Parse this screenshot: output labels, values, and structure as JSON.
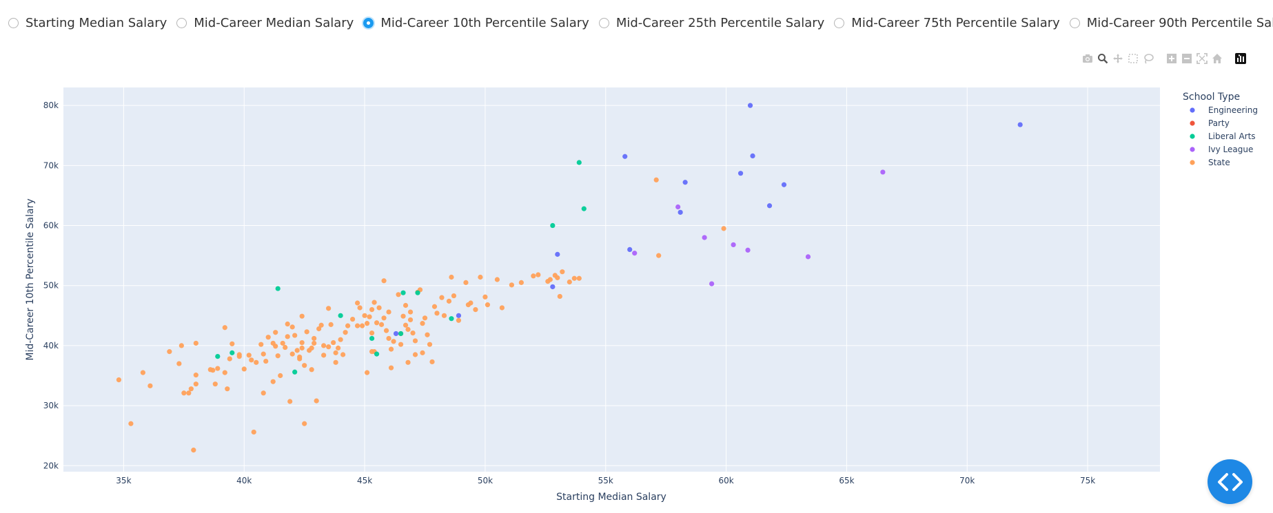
{
  "radio_options": [
    {
      "label": "Starting Median Salary",
      "selected": false
    },
    {
      "label": "Mid-Career Median Salary",
      "selected": false
    },
    {
      "label": "Mid-Career 10th Percentile Salary",
      "selected": true
    },
    {
      "label": "Mid-Career 25th Percentile Salary",
      "selected": false
    },
    {
      "label": "Mid-Career 75th Percentile Salary",
      "selected": false
    },
    {
      "label": "Mid-Career 90th Percentile Salary",
      "selected": false
    }
  ],
  "modebar": {
    "icons": [
      "camera-icon",
      "zoom-icon",
      "pan-icon",
      "box-select-icon",
      "lasso-icon",
      "zoom-in-icon",
      "zoom-out-icon",
      "autoscale-icon",
      "reset-axes-icon",
      "plotly-logo-icon"
    ]
  },
  "chart_data": {
    "type": "scatter",
    "title": "",
    "xlabel": "Starting Median Salary",
    "ylabel": "Mid-Career 10th Percentile Salary",
    "xlim": [
      32500,
      78000
    ],
    "ylim": [
      19000,
      83000
    ],
    "x_ticks": [
      35000,
      40000,
      45000,
      50000,
      55000,
      60000,
      65000,
      70000,
      75000
    ],
    "x_tick_labels": [
      "35k",
      "40k",
      "45k",
      "50k",
      "55k",
      "60k",
      "65k",
      "70k",
      "75k"
    ],
    "y_ticks": [
      20000,
      30000,
      40000,
      50000,
      60000,
      70000,
      80000
    ],
    "y_tick_labels": [
      "20k",
      "30k",
      "40k",
      "50k",
      "60k",
      "70k",
      "80k"
    ],
    "grid": true,
    "legend_title": "School Type",
    "legend_position": "top-right",
    "series": [
      {
        "name": "Engineering",
        "color": "#636efa",
        "points": [
          [
            61000,
            80000
          ],
          [
            72200,
            76800
          ],
          [
            55800,
            71500
          ],
          [
            61100,
            71600
          ],
          [
            60600,
            68700
          ],
          [
            58300,
            67200
          ],
          [
            62400,
            66800
          ],
          [
            61800,
            63300
          ],
          [
            58100,
            62200
          ],
          [
            56000,
            56000
          ],
          [
            53000,
            55200
          ],
          [
            52800,
            49800
          ],
          [
            48900,
            45000
          ],
          [
            46300,
            42000
          ]
        ]
      },
      {
        "name": "Party",
        "color": "#ef553b",
        "points": []
      },
      {
        "name": "Liberal Arts",
        "color": "#00cc96",
        "points": [
          [
            53900,
            70500
          ],
          [
            54100,
            62800
          ],
          [
            52800,
            60000
          ],
          [
            41400,
            49500
          ],
          [
            46600,
            48800
          ],
          [
            47200,
            48800
          ],
          [
            48600,
            44500
          ],
          [
            44000,
            45000
          ],
          [
            45300,
            41200
          ],
          [
            38900,
            38200
          ],
          [
            39500,
            38800
          ],
          [
            45500,
            38600
          ],
          [
            42100,
            35600
          ],
          [
            46500,
            42000
          ]
        ]
      },
      {
        "name": "Ivy League",
        "color": "#ab63fa",
        "points": [
          [
            66500,
            68900
          ],
          [
            58000,
            63100
          ],
          [
            59100,
            58000
          ],
          [
            60300,
            56800
          ],
          [
            56200,
            55400
          ],
          [
            60900,
            55900
          ],
          [
            63400,
            54800
          ],
          [
            59400,
            50300
          ]
        ]
      },
      {
        "name": "State",
        "color": "#ffa15a",
        "points": [
          [
            34800,
            34300
          ],
          [
            35300,
            27000
          ],
          [
            35800,
            35500
          ],
          [
            36100,
            33300
          ],
          [
            36900,
            39000
          ],
          [
            37300,
            37000
          ],
          [
            37400,
            40000
          ],
          [
            37500,
            32100
          ],
          [
            37700,
            32100
          ],
          [
            37800,
            32800
          ],
          [
            37900,
            22600
          ],
          [
            38000,
            35100
          ],
          [
            38000,
            40400
          ],
          [
            38000,
            33600
          ],
          [
            38600,
            36000
          ],
          [
            38700,
            35900
          ],
          [
            38800,
            33600
          ],
          [
            38900,
            36200
          ],
          [
            39200,
            35500
          ],
          [
            39200,
            43000
          ],
          [
            39300,
            32800
          ],
          [
            39400,
            37800
          ],
          [
            39500,
            40300
          ],
          [
            39800,
            38500
          ],
          [
            39800,
            38200
          ],
          [
            40000,
            36100
          ],
          [
            40200,
            38400
          ],
          [
            40300,
            37600
          ],
          [
            40500,
            37200
          ],
          [
            40400,
            25600
          ],
          [
            40700,
            40200
          ],
          [
            40800,
            38600
          ],
          [
            40900,
            37400
          ],
          [
            40800,
            32100
          ],
          [
            41000,
            41400
          ],
          [
            41200,
            34000
          ],
          [
            41200,
            40400
          ],
          [
            41300,
            39900
          ],
          [
            41300,
            42200
          ],
          [
            41400,
            38300
          ],
          [
            41500,
            35000
          ],
          [
            41600,
            40400
          ],
          [
            41700,
            39700
          ],
          [
            41800,
            41500
          ],
          [
            41800,
            43600
          ],
          [
            42000,
            43100
          ],
          [
            42100,
            41700
          ],
          [
            41900,
            30700
          ],
          [
            42000,
            38600
          ],
          [
            42200,
            39200
          ],
          [
            42300,
            37800
          ],
          [
            42300,
            38100
          ],
          [
            42400,
            39600
          ],
          [
            42400,
            40500
          ],
          [
            42500,
            36700
          ],
          [
            42500,
            27000
          ],
          [
            42400,
            44900
          ],
          [
            42600,
            42300
          ],
          [
            42700,
            39200
          ],
          [
            42800,
            39600
          ],
          [
            42900,
            40400
          ],
          [
            42800,
            36000
          ],
          [
            42900,
            41200
          ],
          [
            43000,
            30800
          ],
          [
            43100,
            42800
          ],
          [
            43200,
            43400
          ],
          [
            43300,
            38400
          ],
          [
            43300,
            40000
          ],
          [
            43500,
            39800
          ],
          [
            43500,
            46200
          ],
          [
            43600,
            43500
          ],
          [
            43700,
            40500
          ],
          [
            43800,
            38800
          ],
          [
            43800,
            37200
          ],
          [
            43900,
            39600
          ],
          [
            44000,
            41000
          ],
          [
            44100,
            38500
          ],
          [
            44200,
            42200
          ],
          [
            44300,
            43300
          ],
          [
            44500,
            44400
          ],
          [
            44700,
            43300
          ],
          [
            44700,
            47100
          ],
          [
            44800,
            46300
          ],
          [
            44900,
            43300
          ],
          [
            45000,
            45000
          ],
          [
            45100,
            35500
          ],
          [
            45100,
            43700
          ],
          [
            45200,
            44800
          ],
          [
            45300,
            39000
          ],
          [
            45300,
            46000
          ],
          [
            45300,
            42100
          ],
          [
            45400,
            39000
          ],
          [
            45400,
            47200
          ],
          [
            45500,
            43800
          ],
          [
            45600,
            46300
          ],
          [
            45700,
            43500
          ],
          [
            45800,
            44600
          ],
          [
            45800,
            50800
          ],
          [
            45900,
            42500
          ],
          [
            46000,
            41200
          ],
          [
            46000,
            45600
          ],
          [
            46100,
            39400
          ],
          [
            46100,
            36300
          ],
          [
            46200,
            40700
          ],
          [
            46400,
            48500
          ],
          [
            46500,
            42000
          ],
          [
            46500,
            40200
          ],
          [
            46600,
            44900
          ],
          [
            46700,
            46700
          ],
          [
            46700,
            43400
          ],
          [
            46800,
            42700
          ],
          [
            46900,
            45600
          ],
          [
            46900,
            44300
          ],
          [
            47000,
            42100
          ],
          [
            47100,
            40800
          ],
          [
            47100,
            38500
          ],
          [
            47200,
            48900
          ],
          [
            47300,
            49300
          ],
          [
            47400,
            38800
          ],
          [
            47400,
            43700
          ],
          [
            47500,
            44600
          ],
          [
            47600,
            41800
          ],
          [
            47700,
            40200
          ],
          [
            47800,
            37300
          ],
          [
            47900,
            46500
          ],
          [
            48000,
            45400
          ],
          [
            48200,
            48000
          ],
          [
            48300,
            45000
          ],
          [
            48500,
            47400
          ],
          [
            48600,
            51400
          ],
          [
            48700,
            48300
          ],
          [
            48900,
            44200
          ],
          [
            49200,
            50500
          ],
          [
            49300,
            46800
          ],
          [
            49400,
            47100
          ],
          [
            49600,
            46000
          ],
          [
            49800,
            51400
          ],
          [
            50000,
            48100
          ],
          [
            50100,
            46800
          ],
          [
            50500,
            51000
          ],
          [
            50700,
            46300
          ],
          [
            51100,
            50100
          ],
          [
            51500,
            50500
          ],
          [
            52000,
            51600
          ],
          [
            52200,
            51800
          ],
          [
            52600,
            50700
          ],
          [
            52700,
            51000
          ],
          [
            52900,
            51700
          ],
          [
            53000,
            51300
          ],
          [
            53100,
            48200
          ],
          [
            53200,
            52300
          ],
          [
            53500,
            50600
          ],
          [
            53700,
            51200
          ],
          [
            53900,
            51200
          ],
          [
            57100,
            67600
          ],
          [
            57200,
            55000
          ],
          [
            59900,
            59500
          ],
          [
            46800,
            37200
          ]
        ]
      }
    ]
  }
}
